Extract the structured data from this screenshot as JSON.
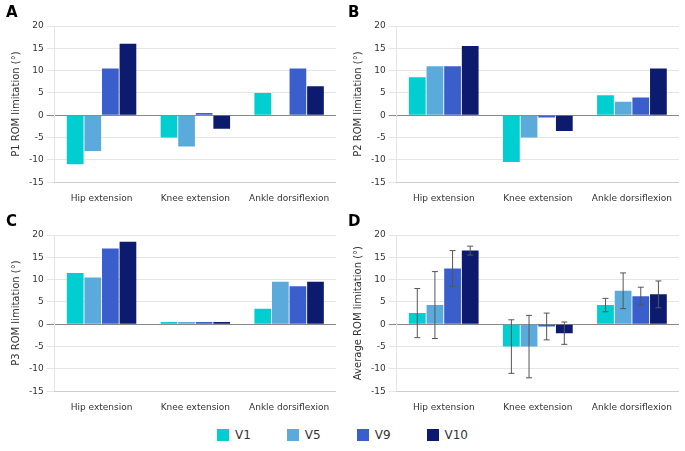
{
  "chart_data": [
    {
      "type": "bar",
      "title": "A",
      "ylabel": "P1 ROM limitation (°)",
      "categories": [
        "Hip extension",
        "Knee extension",
        "Ankle dorsiflexion"
      ],
      "series": [
        {
          "name": "V1",
          "color": "#00CED1",
          "values": [
            -11,
            -5,
            5
          ]
        },
        {
          "name": "V5",
          "color": "#5aabdc",
          "values": [
            -8,
            -7,
            0
          ]
        },
        {
          "name": "V9",
          "color": "#3a5fcd",
          "values": [
            10.5,
            0.5,
            10.5
          ]
        },
        {
          "name": "V10",
          "color": "#0d1b6e",
          "values": [
            16,
            -3,
            6.5
          ]
        }
      ],
      "ylim": [
        -15,
        20
      ],
      "yticks": [
        -15,
        -10,
        -5,
        0,
        5,
        10,
        15,
        20
      ],
      "grid": true,
      "legend": "bottom"
    },
    {
      "type": "bar",
      "title": "B",
      "ylabel": "P2 ROM limitation (°)",
      "categories": [
        "Hip extension",
        "Knee extension",
        "Ankle dorsiflexion"
      ],
      "series": [
        {
          "name": "V1",
          "color": "#00CED1",
          "values": [
            8.5,
            -10.5,
            4.5
          ]
        },
        {
          "name": "V5",
          "color": "#5aabdc",
          "values": [
            11,
            -5,
            3
          ]
        },
        {
          "name": "V9",
          "color": "#3a5fcd",
          "values": [
            11,
            -0.5,
            4
          ]
        },
        {
          "name": "V10",
          "color": "#0d1b6e",
          "values": [
            15.5,
            -3.5,
            10.5
          ]
        }
      ],
      "ylim": [
        -15,
        20
      ],
      "yticks": [
        -15,
        -10,
        -5,
        0,
        5,
        10,
        15,
        20
      ],
      "grid": true,
      "legend": "bottom"
    },
    {
      "type": "bar",
      "title": "C",
      "ylabel": "P3 ROM limitation (°)",
      "categories": [
        "Hip extension",
        "Knee extension",
        "Ankle dorsiflexion"
      ],
      "series": [
        {
          "name": "V1",
          "color": "#00CED1",
          "values": [
            11.5,
            0.5,
            3.5
          ]
        },
        {
          "name": "V5",
          "color": "#5aabdc",
          "values": [
            10.5,
            0.5,
            9.5
          ]
        },
        {
          "name": "V9",
          "color": "#3a5fcd",
          "values": [
            17,
            0.5,
            8.5
          ]
        },
        {
          "name": "V10",
          "color": "#0d1b6e",
          "values": [
            18.5,
            0.5,
            9.5
          ]
        }
      ],
      "ylim": [
        -15,
        20
      ],
      "yticks": [
        -15,
        -10,
        -5,
        0,
        5,
        10,
        15,
        20
      ],
      "grid": true,
      "legend": "bottom"
    },
    {
      "type": "bar",
      "title": "D",
      "ylabel": "Average ROM limitation (°)",
      "categories": [
        "Hip extension",
        "Knee extension",
        "Ankle dorsiflexion"
      ],
      "series": [
        {
          "name": "V1",
          "color": "#00CED1",
          "values": [
            2.5,
            -5,
            4.3
          ],
          "errors": [
            5.5,
            6,
            1.5
          ]
        },
        {
          "name": "V5",
          "color": "#5aabdc",
          "values": [
            4.3,
            -5,
            7.5
          ],
          "errors": [
            7.5,
            7,
            4
          ]
        },
        {
          "name": "V9",
          "color": "#3a5fcd",
          "values": [
            12.5,
            -0.5,
            6.3
          ],
          "errors": [
            4,
            3,
            2
          ]
        },
        {
          "name": "V10",
          "color": "#0d1b6e",
          "values": [
            16.5,
            -2,
            6.7
          ],
          "errors": [
            1,
            2.5,
            3
          ]
        }
      ],
      "ylim": [
        -15,
        20
      ],
      "yticks": [
        -15,
        -10,
        -5,
        0,
        5,
        10,
        15,
        20
      ],
      "grid": true,
      "legend": "bottom"
    }
  ]
}
